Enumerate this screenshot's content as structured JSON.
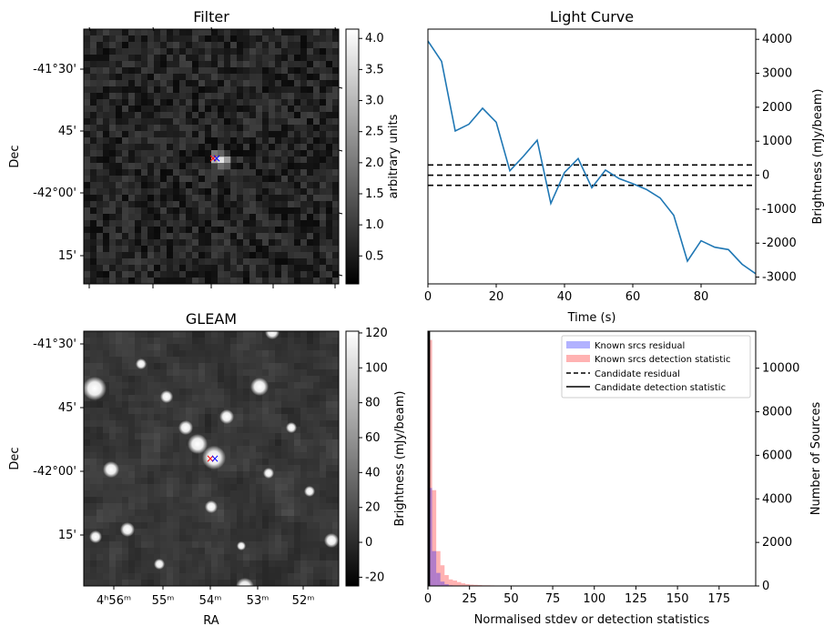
{
  "chart_data": [
    {
      "type": "heatmap",
      "title": "Filter",
      "ylabel": "Dec",
      "y_ticks": [
        "-41°30'",
        "45'",
        "-42°00'",
        "15'"
      ],
      "colorbar": {
        "label": "arbitrary units",
        "range": [
          0.05,
          4.15
        ],
        "ticks": [
          "0.5",
          "1.0",
          "1.5",
          "2.0",
          "2.5",
          "3.0",
          "3.5",
          "4.0"
        ],
        "colormap": [
          "#000000",
          "#ffffff"
        ]
      },
      "markers": [
        {
          "symbol": "×",
          "color": "#ff0000"
        },
        {
          "symbol": "×",
          "color": "#0000ff"
        }
      ]
    },
    {
      "type": "line",
      "title": "Light Curve",
      "xlabel": "Time (s)",
      "ylabel": "Brightness (mJy/beam)",
      "xlim": [
        0,
        96
      ],
      "ylim": [
        -3200,
        4300
      ],
      "x_ticks": [
        "0",
        "20",
        "40",
        "60",
        "80"
      ],
      "y_ticks": [
        "-3000",
        "-2000",
        "-1000",
        "0",
        "1000",
        "2000",
        "3000",
        "4000"
      ],
      "series": [
        {
          "color": "#1f77b4",
          "x": [
            0,
            4,
            8,
            12,
            16,
            20,
            24,
            28,
            32,
            36,
            40,
            44,
            48,
            52,
            56,
            60,
            64,
            68,
            72,
            76,
            80,
            84,
            88,
            92,
            96
          ],
          "y": [
            3950,
            3350,
            1300,
            1500,
            1970,
            1560,
            130,
            560,
            1030,
            -830,
            80,
            490,
            -370,
            150,
            -100,
            -250,
            -420,
            -670,
            -1180,
            -2530,
            -1930,
            -2120,
            -2190,
            -2620,
            -2900
          ]
        }
      ],
      "hlines": [
        {
          "y": 300,
          "style": "dashed"
        },
        {
          "y": 0,
          "style": "dashed"
        },
        {
          "y": -300,
          "style": "dashed"
        }
      ]
    },
    {
      "type": "heatmap",
      "title": "GLEAM",
      "xlabel": "RA",
      "ylabel": "Dec",
      "x_ticks": [
        "4ʰ56ᵐ",
        "55ᵐ",
        "54ᵐ",
        "53ᵐ",
        "52ᵐ"
      ],
      "y_ticks": [
        "-41°30'",
        "45'",
        "-42°00'",
        "15'"
      ],
      "colorbar": {
        "label": "Brightness (mJy/beam)",
        "range": [
          -25,
          121
        ],
        "ticks": [
          "-20",
          "0",
          "20",
          "40",
          "60",
          "80",
          "100",
          "120"
        ],
        "colormap": [
          "#000000",
          "#ffffff"
        ]
      },
      "markers": [
        {
          "symbol": "×",
          "color": "#ff0000"
        },
        {
          "symbol": "×",
          "color": "#0000ff"
        }
      ]
    },
    {
      "type": "bar",
      "xlabel": "Normalised stdev or detection statistics",
      "ylabel": "Number of Sources",
      "xlim": [
        0,
        197
      ],
      "ylim": [
        0,
        11700
      ],
      "x_ticks": [
        "0",
        "25",
        "50",
        "75",
        "100",
        "125",
        "150",
        "175"
      ],
      "y_ticks": [
        "0",
        "2000",
        "4000",
        "6000",
        "8000",
        "10000"
      ],
      "bin_width": 2.5,
      "series": [
        {
          "name": "Known srcs residual",
          "color": "#0000ff",
          "alpha": 0.3,
          "values": [
            4500,
            1600,
            600,
            200,
            80,
            30,
            15,
            5
          ]
        },
        {
          "name": "Known srcs detection statistic",
          "color": "#ff0000",
          "alpha": 0.3,
          "values": [
            11300,
            4400,
            1600,
            950,
            500,
            300,
            250,
            180,
            120,
            80,
            60,
            50,
            40,
            30,
            30,
            25,
            20,
            20,
            15,
            15,
            12,
            10,
            10,
            10,
            8,
            8,
            8,
            6,
            6,
            6,
            5,
            5,
            5,
            4,
            4,
            4,
            3,
            3,
            3,
            3,
            2,
            2,
            2,
            2,
            2,
            2,
            2,
            2,
            2,
            2,
            2,
            2,
            2,
            2,
            2,
            2,
            2,
            2,
            2,
            2,
            2,
            2,
            2,
            2,
            2,
            2,
            2,
            2,
            2,
            2,
            2,
            2,
            2,
            2,
            2,
            2,
            2
          ]
        }
      ],
      "vlines": [
        {
          "name": "Candidate residual",
          "x": 0.6,
          "style": "dashed"
        },
        {
          "name": "Candidate detection statistic",
          "x": 0.8,
          "style": "solid"
        }
      ]
    }
  ]
}
